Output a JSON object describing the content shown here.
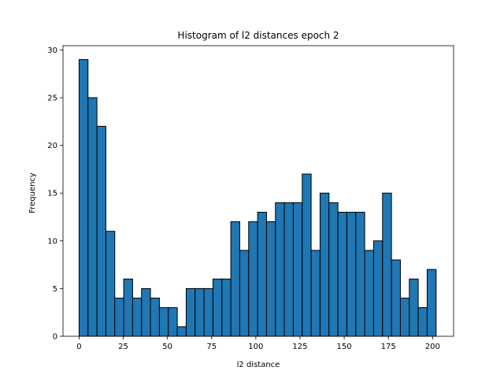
{
  "chart_data": {
    "type": "bar",
    "title": "Histogram of l2 distances epoch 2",
    "xlabel": "l2 distance",
    "ylabel": "Frequency",
    "xlim": [
      -9.1,
      211.9
    ],
    "ylim": [
      0,
      30.45
    ],
    "xticks": [
      0,
      25,
      50,
      75,
      100,
      125,
      150,
      175,
      200
    ],
    "yticks": [
      0,
      5,
      10,
      15,
      20,
      25,
      30
    ],
    "grid": false,
    "bar_color": "#1f77b4",
    "edge_color": "#000000",
    "bin_start": 0.0,
    "bin_width": 5.05,
    "values": [
      29,
      25,
      22,
      11,
      4,
      6,
      4,
      5,
      4,
      3,
      3,
      1,
      5,
      5,
      5,
      6,
      6,
      12,
      9,
      12,
      13,
      12,
      14,
      14,
      14,
      17,
      9,
      15,
      14,
      13,
      13,
      13,
      9,
      10,
      15,
      8,
      4,
      6,
      3,
      7
    ]
  }
}
